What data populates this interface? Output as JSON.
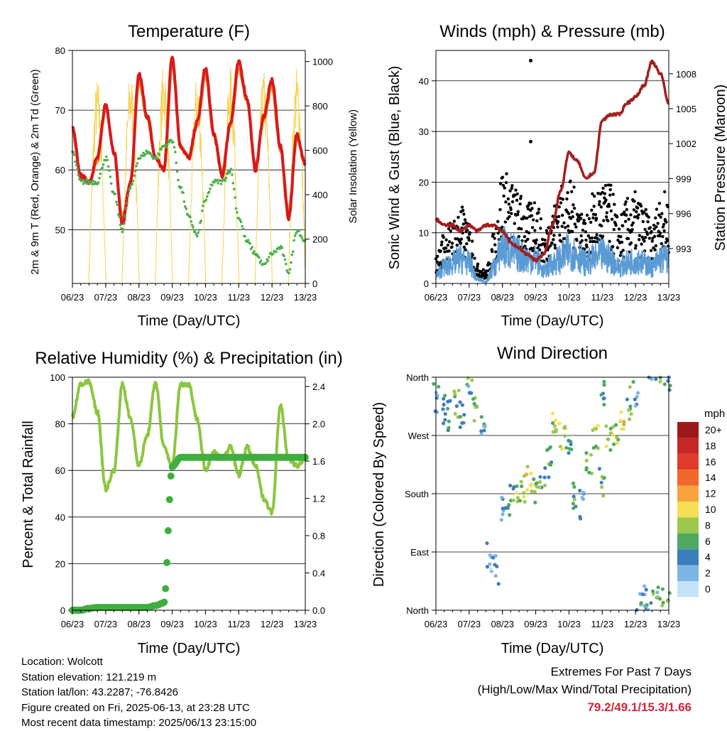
{
  "colors": {
    "red": "#d7191c",
    "orange": "#f28e2b",
    "green_td": "#4daf4a",
    "yellow": "#f6d451",
    "blue_wind": "#5b9bd5",
    "gust": "#000000",
    "maroon": "#a31f1f",
    "rh": "#8cc63f",
    "precip": "#3fae3f",
    "extremes": "#c8283a"
  },
  "x_ticks": [
    "06/23",
    "07/23",
    "08/23",
    "09/23",
    "10/23",
    "11/23",
    "12/23",
    "13/23"
  ],
  "x_label": "Time (Day/UTC)",
  "panels": {
    "temperature": {
      "title": "Temperature (F)",
      "ylabel_left": "2m & 9m T (Red, Orange) & 2m Td (Green)",
      "ylabel_right": "Solar Insolation (Yellow)",
      "left_ticks": [
        "50",
        "60",
        "70",
        "80"
      ],
      "right_ticks": [
        "0",
        "200",
        "400",
        "600",
        "800",
        "1000"
      ]
    },
    "winds": {
      "title": "Winds (mph) & Pressure (mb)",
      "ylabel_left": "Sonic Wind & Gust (Blue, Black)",
      "ylabel_right": "Station Pressure (Maroon)",
      "left_ticks": [
        "0",
        "10",
        "20",
        "30",
        "40"
      ],
      "right_ticks": [
        "993",
        "996",
        "999",
        "1002",
        "1005",
        "1008"
      ]
    },
    "humidity": {
      "title": "Relative Humidity (%) & Precipitation (in)",
      "ylabel_left": "Percent & Total Rainfall",
      "left_ticks": [
        "0",
        "20",
        "40",
        "60",
        "80",
        "100"
      ],
      "right_ticks": [
        "0.0",
        "0.4",
        "0.8",
        "1.2",
        "1.6",
        "2.0",
        "2.4"
      ]
    },
    "direction": {
      "title": "Wind Direction",
      "ylabel_left": "Direction (Colored By Speed)",
      "dir_ticks": [
        "North",
        "East",
        "South",
        "West",
        "North"
      ],
      "legend_title": "mph",
      "legend_labels": [
        "20+",
        "18",
        "16",
        "14",
        "12",
        "10",
        "8",
        "6",
        "4",
        "2",
        "0"
      ],
      "legend_colors": [
        "#9e1a1a",
        "#c62828",
        "#e03b2b",
        "#f2672a",
        "#f9a23c",
        "#f6df55",
        "#9cc84e",
        "#4fa862",
        "#3c7dbd",
        "#7db5e2",
        "#c4e3f5"
      ]
    }
  },
  "info": {
    "location": "Location: Wolcott",
    "elevation": "Station elevation: 121.219 m",
    "latlon": "Station lat/lon: 43.2287; -76.8426",
    "created": "Figure created on Fri, 2025-06-13, at 23:28 UTC",
    "recent": "Most recent data timestamp: 2025/06/13 23:15:00"
  },
  "extremes": {
    "title": "Extremes For Past 7 Days",
    "subtitle": "(High/Low/Max Wind/Total Precipitation)",
    "values": "79.2/49.1/15.3/1.66"
  },
  "chart_data": [
    {
      "type": "line",
      "title": "Temperature (F)",
      "xlabel": "Time (Day/UTC)",
      "ylabel": "2m & 9m T (Red, Orange) & 2m Td (Green)",
      "ylim": [
        41,
        80
      ],
      "y2label": "Solar Insolation (Yellow)",
      "y2lim": [
        0,
        1050
      ],
      "x": [
        6,
        6.25,
        6.5,
        6.75,
        7,
        7.25,
        7.5,
        7.75,
        8,
        8.25,
        8.5,
        8.75,
        9,
        9.25,
        9.5,
        9.75,
        10,
        10.25,
        10.5,
        10.75,
        11,
        11.25,
        11.5,
        11.75,
        12,
        12.25,
        12.5,
        12.75,
        13
      ],
      "series": [
        {
          "name": "2m T",
          "axis": "left",
          "values": [
            67,
            59,
            58,
            62,
            71,
            63,
            51,
            58,
            76,
            69,
            62,
            60,
            79,
            64,
            62,
            68,
            77,
            66,
            59,
            68,
            78,
            72,
            60,
            69,
            75,
            64,
            52,
            66,
            61
          ]
        },
        {
          "name": "9m T",
          "axis": "left",
          "values": [
            66.5,
            59,
            58,
            61.5,
            70.5,
            63,
            52,
            58,
            75,
            68.5,
            62,
            60,
            78,
            64,
            62,
            67.5,
            76,
            66,
            59.5,
            67.5,
            77,
            71.5,
            60.5,
            68.5,
            74,
            63.5,
            53,
            65.5,
            61
          ]
        },
        {
          "name": "2m Td",
          "axis": "left",
          "values": [
            63,
            58,
            58,
            58,
            62,
            56,
            50,
            57,
            62,
            63,
            62,
            64,
            65,
            57,
            52,
            49,
            55,
            58,
            58,
            60,
            52,
            48,
            46,
            44,
            46,
            47,
            43,
            50,
            48
          ]
        },
        {
          "name": "Solar Insolation",
          "axis": "right",
          "values": [
            0,
            0,
            0,
            930,
            0,
            0,
            0,
            960,
            0,
            0,
            0,
            1000,
            0,
            0,
            0,
            950,
            0,
            0,
            0,
            980,
            0,
            0,
            0,
            960,
            0,
            0,
            0,
            980,
            0
          ]
        }
      ]
    },
    {
      "type": "line",
      "title": "Winds (mph) & Pressure (mb)",
      "xlabel": "Time (Day/UTC)",
      "ylabel": "Sonic Wind & Gust (Blue, Black)",
      "ylim": [
        0,
        46
      ],
      "y2label": "Station Pressure (Maroon)",
      "y2lim": [
        990,
        1010
      ],
      "x": [
        6,
        6.25,
        6.5,
        6.75,
        7,
        7.25,
        7.5,
        7.75,
        8,
        8.25,
        8.5,
        8.75,
        9,
        9.25,
        9.5,
        9.75,
        10,
        10.25,
        10.5,
        10.75,
        11,
        11.25,
        11.5,
        11.75,
        12,
        12.25,
        12.5,
        12.75,
        13
      ],
      "series": [
        {
          "name": "Sonic Wind",
          "axis": "left",
          "values": [
            2,
            4,
            5,
            6,
            5,
            1,
            0.5,
            4,
            9,
            8,
            7,
            6,
            6,
            3,
            5,
            6,
            8,
            7,
            5,
            6,
            7,
            6,
            4,
            5,
            6,
            5,
            4,
            6,
            6
          ]
        },
        {
          "name": "Gust",
          "axis": "left",
          "values": [
            4,
            8,
            10,
            12,
            9,
            3,
            2,
            8,
            18,
            16,
            14,
            12,
            14,
            8,
            12,
            15,
            16,
            14,
            10,
            14,
            16,
            15,
            10,
            13,
            14,
            12,
            9,
            14,
            14
          ]
        },
        {
          "name": "Station Pressure",
          "axis": "right",
          "values": [
            995.5,
            995,
            995,
            994.5,
            995,
            994.5,
            995,
            995,
            994.5,
            993.5,
            993,
            992.5,
            992,
            992.5,
            995,
            998,
            1001.2,
            1000.5,
            999,
            999.5,
            1004,
            1004.5,
            1004.5,
            1005.5,
            1006,
            1007,
            1009,
            1008,
            1005.5
          ]
        }
      ],
      "outliers": [
        {
          "x": 8.85,
          "y": 44
        },
        {
          "x": 8.85,
          "y": 28
        }
      ]
    },
    {
      "type": "line",
      "title": "Relative Humidity (%) & Precipitation (in)",
      "xlabel": "Time (Day/UTC)",
      "ylabel": "Percent & Total Rainfall",
      "ylim": [
        0,
        100
      ],
      "y2lim": [
        0,
        2.5
      ],
      "x": [
        6,
        6.25,
        6.5,
        6.75,
        7,
        7.25,
        7.5,
        7.75,
        8,
        8.25,
        8.5,
        8.75,
        9,
        9.25,
        9.5,
        9.75,
        10,
        10.25,
        10.5,
        10.75,
        11,
        11.25,
        11.5,
        11.75,
        12,
        12.25,
        12.5,
        12.75,
        13
      ],
      "series": [
        {
          "name": "Relative Humidity",
          "axis": "left",
          "values": [
            83,
            97,
            98,
            85,
            52,
            60,
            97,
            82,
            62,
            75,
            98,
            70,
            62,
            97,
            97,
            82,
            60,
            68,
            65,
            70,
            58,
            70,
            62,
            48,
            42,
            88,
            65,
            62,
            65
          ]
        },
        {
          "name": "Total Precipitation",
          "axis": "right",
          "values": [
            0,
            0,
            0.02,
            0.03,
            0.03,
            0.03,
            0.03,
            0.03,
            0.03,
            0.03,
            0.05,
            0.08,
            1.54,
            1.64,
            1.64,
            1.64,
            1.64,
            1.64,
            1.64,
            1.64,
            1.64,
            1.64,
            1.64,
            1.64,
            1.64,
            1.64,
            1.64,
            1.64,
            1.64
          ]
        }
      ]
    },
    {
      "type": "scatter",
      "title": "Wind Direction",
      "xlabel": "Time (Day/UTC)",
      "ylabel": "Direction (Colored By Speed)",
      "yticks": [
        "North",
        "East",
        "South",
        "West",
        "North"
      ],
      "colorbar": "mph",
      "points": [
        [
          6,
          330,
          3
        ],
        [
          6.2,
          310,
          4
        ],
        [
          6.4,
          300,
          5
        ],
        [
          6.6,
          320,
          6
        ],
        [
          6.8,
          300,
          4
        ],
        [
          7,
          340,
          5
        ],
        [
          7.2,
          310,
          6
        ],
        [
          7.4,
          290,
          4
        ],
        [
          7.6,
          80,
          2
        ],
        [
          7.8,
          60,
          3
        ],
        [
          8,
          150,
          4
        ],
        [
          8.2,
          170,
          5
        ],
        [
          8.4,
          180,
          7
        ],
        [
          8.6,
          190,
          8
        ],
        [
          8.8,
          200,
          10
        ],
        [
          9,
          190,
          7
        ],
        [
          9.2,
          210,
          6
        ],
        [
          9.4,
          230,
          5
        ],
        [
          9.6,
          300,
          8
        ],
        [
          9.8,
          270,
          9
        ],
        [
          10,
          240,
          6
        ],
        [
          10.2,
          180,
          5
        ],
        [
          10.4,
          160,
          4
        ],
        [
          10.6,
          230,
          6
        ],
        [
          10.8,
          270,
          7
        ],
        [
          11,
          200,
          6
        ],
        [
          11,
          340,
          5
        ],
        [
          11.2,
          260,
          7
        ],
        [
          11.4,
          280,
          8
        ],
        [
          11.6,
          300,
          9
        ],
        [
          11.8,
          320,
          6
        ],
        [
          12,
          340,
          4
        ],
        [
          12.2,
          20,
          4
        ],
        [
          12.4,
          10,
          3
        ],
        [
          12.6,
          15,
          5
        ],
        [
          12.8,
          10,
          6
        ],
        [
          13,
          5,
          5
        ]
      ]
    }
  ]
}
